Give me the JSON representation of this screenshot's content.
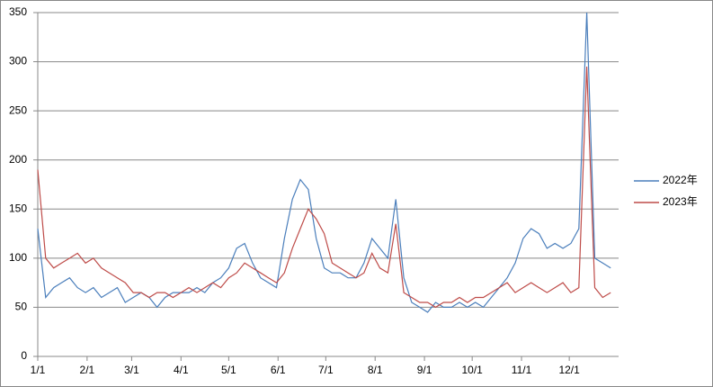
{
  "chart_data": {
    "type": "line",
    "x": [
      1,
      6,
      11,
      16,
      21,
      26,
      31,
      36,
      41,
      46,
      51,
      56,
      61,
      66,
      71,
      76,
      81,
      86,
      91,
      96,
      101,
      106,
      111,
      116,
      121,
      126,
      131,
      136,
      141,
      146,
      151,
      156,
      161,
      166,
      171,
      176,
      181,
      186,
      191,
      196,
      201,
      206,
      211,
      216,
      221,
      226,
      231,
      236,
      241,
      246,
      251,
      256,
      261,
      266,
      271,
      276,
      281,
      286,
      291,
      296,
      301,
      306,
      311,
      316,
      321,
      326,
      331,
      336,
      341,
      346,
      351,
      356,
      361
    ],
    "series": [
      {
        "name": "2022年",
        "color": "#4a7ebb",
        "values": [
          130,
          60,
          70,
          75,
          80,
          70,
          65,
          70,
          60,
          65,
          70,
          55,
          60,
          65,
          60,
          50,
          60,
          65,
          65,
          65,
          70,
          65,
          75,
          80,
          90,
          110,
          115,
          95,
          80,
          75,
          70,
          120,
          160,
          180,
          170,
          120,
          90,
          85,
          85,
          80,
          80,
          95,
          120,
          110,
          100,
          160,
          80,
          55,
          50,
          45,
          55,
          50,
          50,
          55,
          50,
          55,
          50,
          60,
          70,
          80,
          95,
          120,
          130,
          125,
          110,
          115,
          110,
          115,
          130,
          350,
          100,
          95,
          90
        ]
      },
      {
        "name": "2023年",
        "color": "#be4b48",
        "values": [
          190,
          100,
          90,
          95,
          100,
          105,
          95,
          100,
          90,
          85,
          80,
          75,
          65,
          65,
          60,
          65,
          65,
          60,
          65,
          70,
          65,
          70,
          75,
          70,
          80,
          85,
          95,
          90,
          85,
          80,
          75,
          85,
          110,
          130,
          150,
          140,
          125,
          95,
          90,
          85,
          80,
          85,
          105,
          90,
          85,
          135,
          65,
          60,
          55,
          55,
          50,
          55,
          55,
          60,
          55,
          60,
          60,
          65,
          70,
          75,
          65,
          70,
          75,
          70,
          65,
          70,
          75,
          65,
          70,
          295,
          70,
          60,
          65
        ]
      }
    ],
    "xlim": [
      1,
      366
    ],
    "xticks": [
      {
        "value": 1,
        "label": "1/1"
      },
      {
        "value": 32,
        "label": "2/1"
      },
      {
        "value": 60,
        "label": "3/1"
      },
      {
        "value": 91,
        "label": "4/1"
      },
      {
        "value": 121,
        "label": "5/1"
      },
      {
        "value": 152,
        "label": "6/1"
      },
      {
        "value": 182,
        "label": "7/1"
      },
      {
        "value": 213,
        "label": "8/1"
      },
      {
        "value": 244,
        "label": "9/1"
      },
      {
        "value": 274,
        "label": "10/1"
      },
      {
        "value": 305,
        "label": "11/1"
      },
      {
        "value": 335,
        "label": "12/1"
      }
    ],
    "ylim": [
      0,
      350
    ],
    "yticks": [
      0,
      50,
      100,
      150,
      200,
      250,
      300,
      350
    ],
    "grid": true,
    "legend": "right"
  }
}
